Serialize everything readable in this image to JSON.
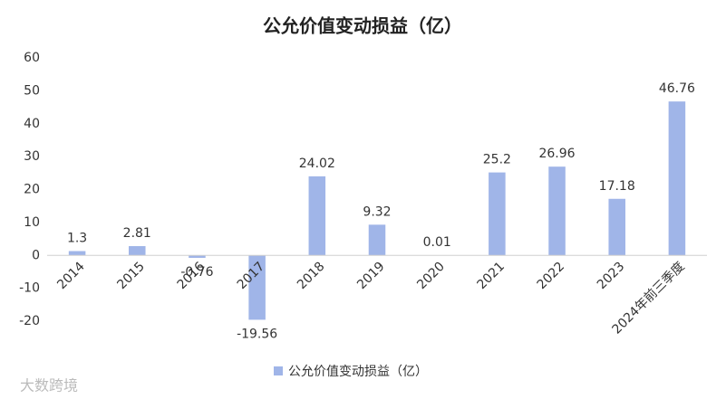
{
  "chart_data": {
    "type": "bar",
    "title": "公允价值变动损益（亿）",
    "categories": [
      "2014",
      "2015",
      "2016",
      "2017",
      "2018",
      "2019",
      "2020",
      "2021",
      "2022",
      "2023",
      "2024年前三季度"
    ],
    "series": [
      {
        "name": "公允价值变动损益（亿）",
        "color": "#a0b5e8",
        "values": [
          1.3,
          2.81,
          -0.76,
          -19.56,
          24.02,
          9.32,
          0.01,
          25.2,
          26.96,
          17.18,
          46.76
        ]
      }
    ],
    "ylim": [
      -20,
      60
    ],
    "yticks": [
      -20,
      -10,
      0,
      10,
      20,
      30,
      40,
      50,
      60
    ],
    "grid": false,
    "legend": "bottom",
    "watermark": "大数跨境"
  }
}
